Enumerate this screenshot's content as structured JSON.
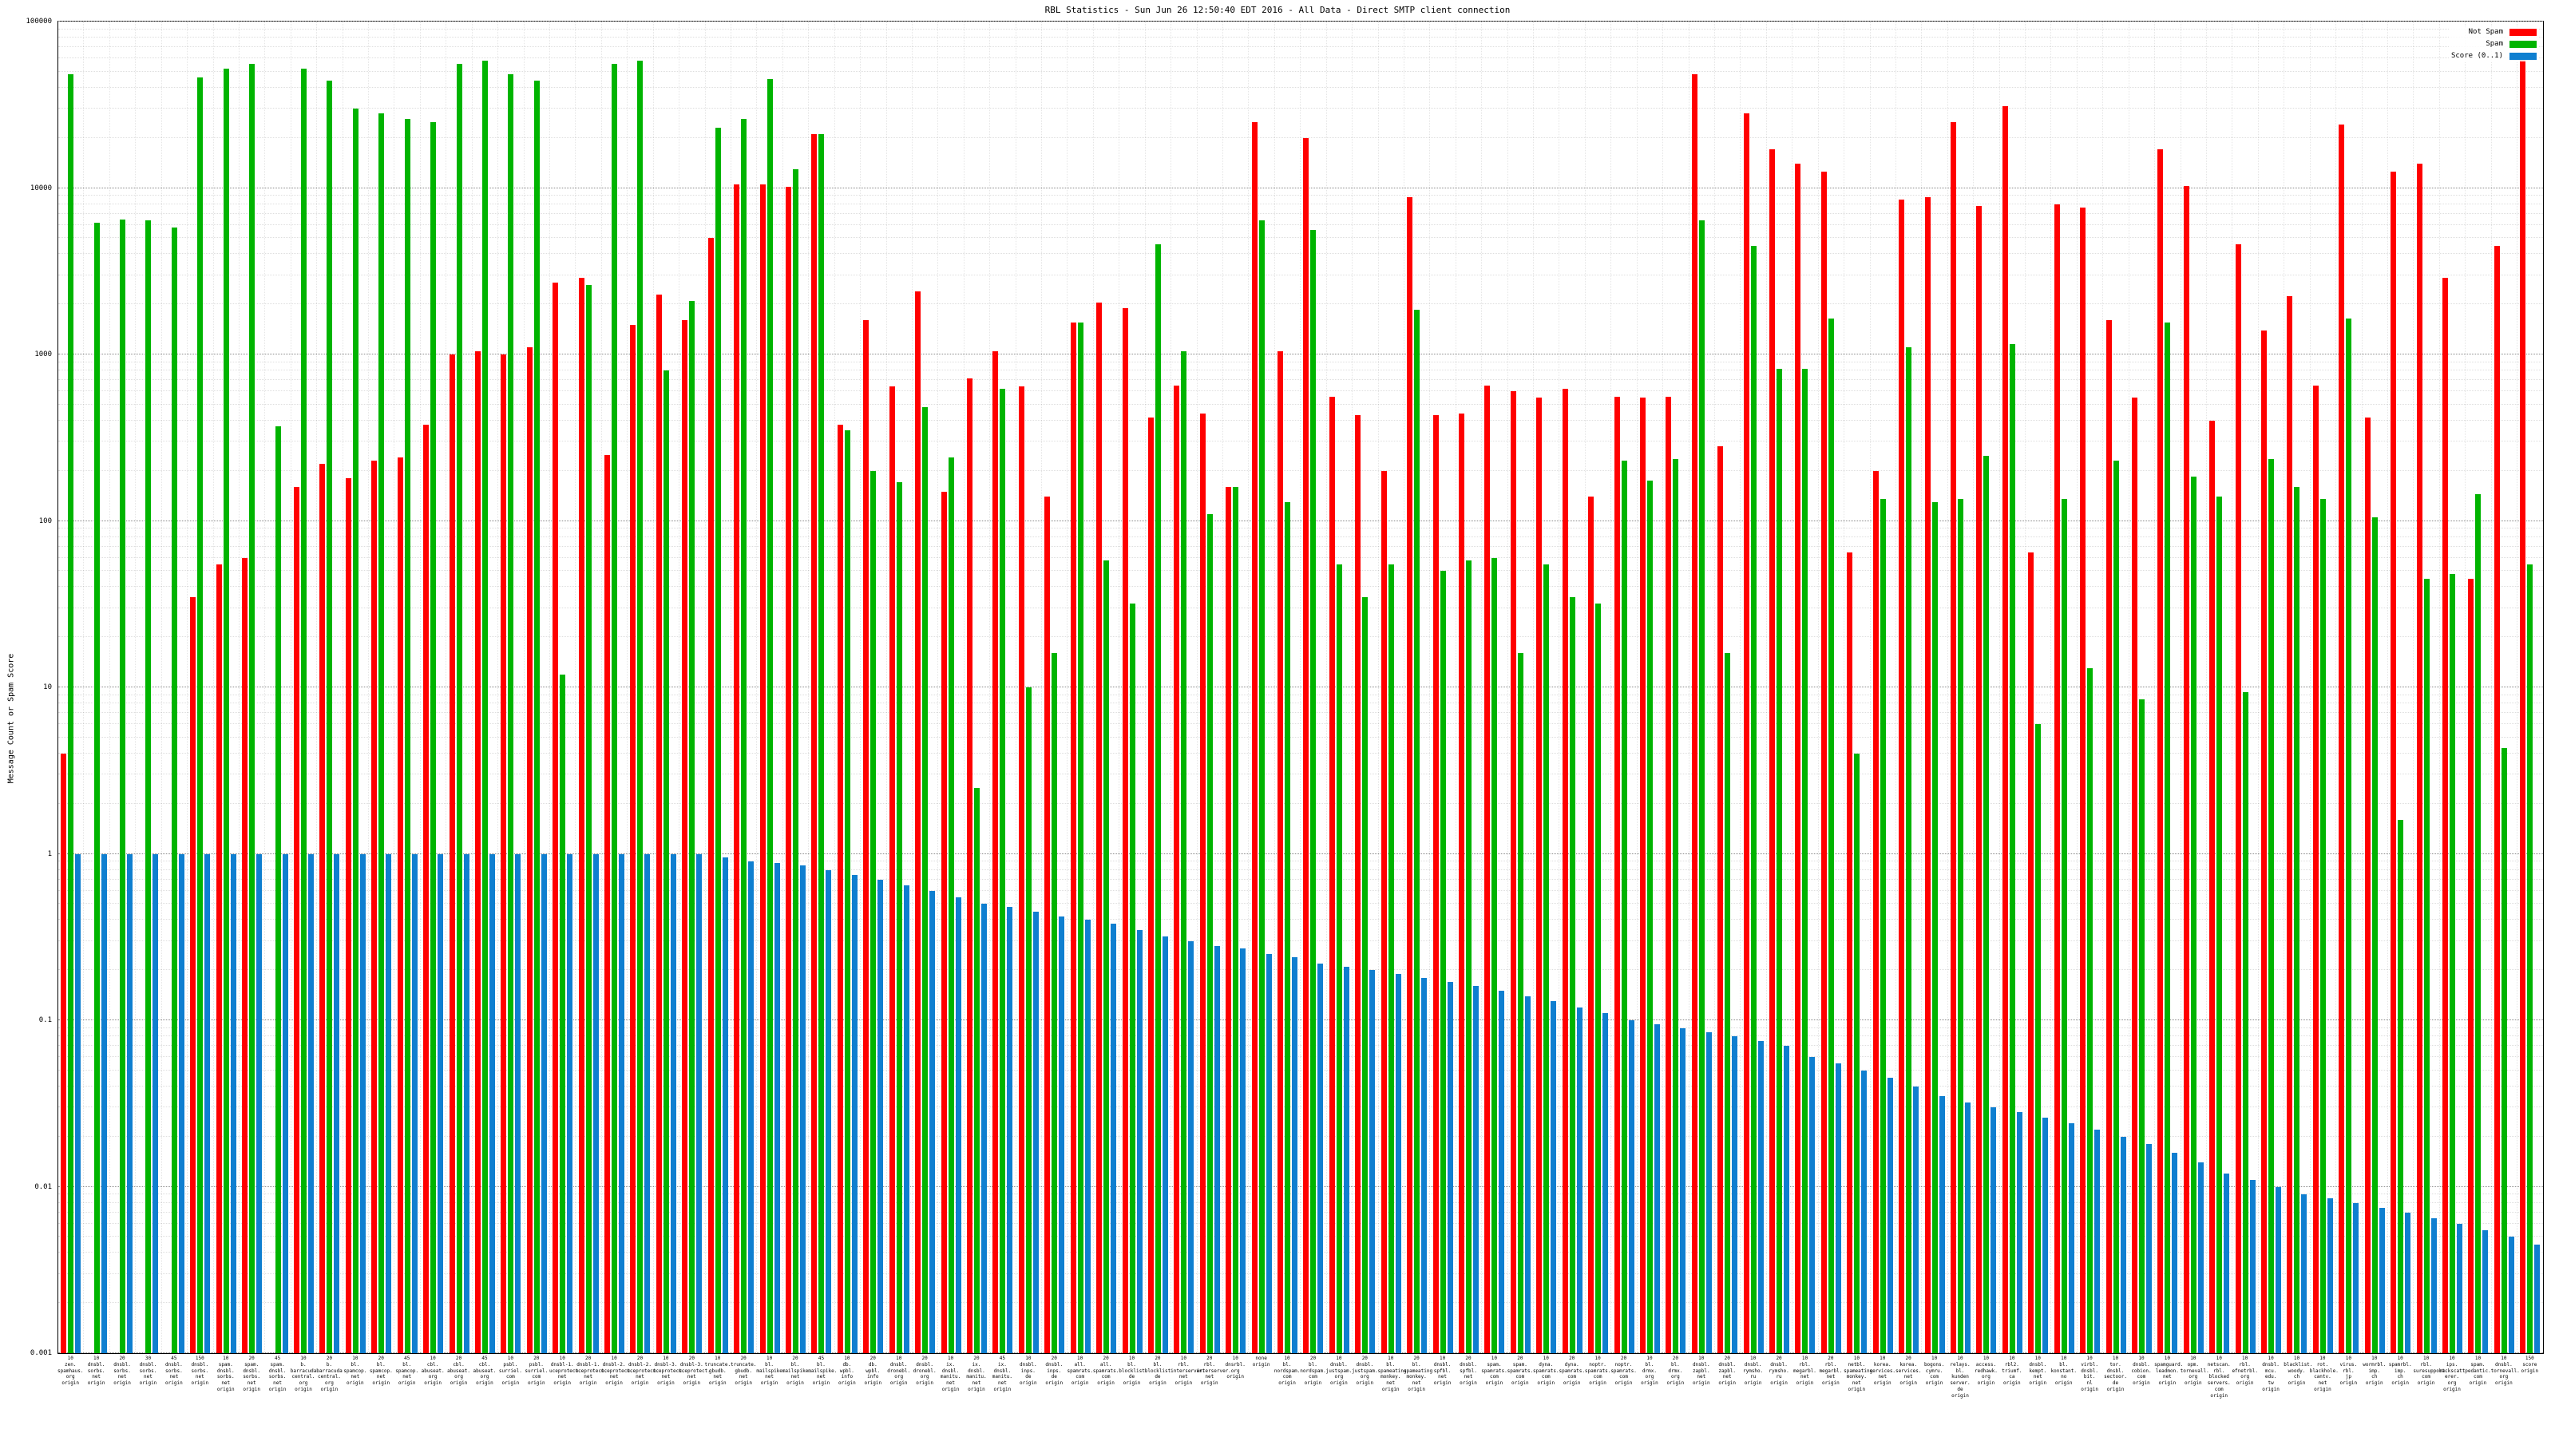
{
  "chart_data": {
    "type": "bar",
    "title": "RBL Statistics - Sun Jun 26 12:50:40 EDT 2016 - All Data - Direct SMTP client connection",
    "ylabel": "Message Count or Spam Score",
    "xlabel": "",
    "yscale": "log",
    "ylim": [
      0.001,
      100000
    ],
    "yticks": [
      "0.001",
      "0.01",
      "0.1",
      "1",
      "10",
      "100",
      "1000",
      "10000",
      "100000"
    ],
    "grid": true,
    "legend_position": "top-right",
    "categories": [
      "10\nzen.\nspamhaus.\norg\norigin",
      "10\ndnsbl.\nsorbs.\nnet\norigin",
      "20\ndnsbl.\nsorbs.\nnet\norigin",
      "30\ndnsbl.\nsorbs.\nnet\norigin",
      "45\ndnsbl.\nsorbs.\nnet\norigin",
      "150\ndnsbl.\nsorbs.\nnet\norigin",
      "10\nspam.\ndnsbl.\nsorbs.\nnet\norigin",
      "20\nspam.\ndnsbl.\nsorbs.\nnet\norigin",
      "45\nspam.\ndnsbl.\nsorbs.\nnet\norigin",
      "10\nb.\nbarracuda\ncentral.\norg\norigin",
      "20\nb.\nbarracuda\ncentral.\norg\norigin",
      "10\nbl.\nspamcop.\nnet\norigin",
      "20\nbl.\nspamcop.\nnet\norigin",
      "45\nbl.\nspamcop.\nnet\norigin",
      "10\ncbl.\nabuseat.\norg\norigin",
      "20\ncbl.\nabuseat.\norg\norigin",
      "45\ncbl.\nabuseat.\norg\norigin",
      "10\npsbl.\nsurriel.\ncom\norigin",
      "20\npsbl.\nsurriel.\ncom\norigin",
      "10\ndnsbl-1.\nuceprotect.\nnet\norigin",
      "20\ndnsbl-1.\nuceprotect.\nnet\norigin",
      "10\ndnsbl-2.\nuceprotect.\nnet\norigin",
      "20\ndnsbl-2.\nuceprotect.\nnet\norigin",
      "10\ndnsbl-3.\nuceprotect.\nnet\norigin",
      "20\ndnsbl-3.\nuceprotect.\nnet\norigin",
      "10\ntruncate.\ngbudb.\nnet\norigin",
      "20\ntruncate.\ngbudb.\nnet\norigin",
      "10\nbl.\nmailspike.\nnet\norigin",
      "20\nbl.\nmailspike.\nnet\norigin",
      "45\nbl.\nmailspike.\nnet\norigin",
      "10\ndb.\nwpbl.\ninfo\norigin",
      "20\ndb.\nwpbl.\ninfo\norigin",
      "10\ndnsbl.\ndronebl.\norg\norigin",
      "20\ndnsbl.\ndronebl.\norg\norigin",
      "10\nix.\ndnsbl.\nmanitu.\nnet\norigin",
      "20\nix.\ndnsbl.\nmanitu.\nnet\norigin",
      "45\nix.\ndnsbl.\nmanitu.\nnet\norigin",
      "10\ndnsbl.\ninps.\nde\norigin",
      "20\ndnsbl.\ninps.\nde\norigin",
      "10\nall.\nspamrats.\ncom\norigin",
      "20\nall.\nspamrats.\ncom\norigin",
      "10\nbl.\nblocklist.\nde\norigin",
      "20\nbl.\nblocklist.\nde\norigin",
      "10\nrbl.\ninterserver.\nnet\norigin",
      "20\nrbl.\ninterserver.\nnet\norigin",
      "10\ndnsrbl.\norg\norigin",
      "none\norigin",
      "10\nbl.\nnordspam.\ncom\norigin",
      "20\nbl.\nnordspam.\ncom\norigin",
      "10\ndnsbl.\njustspam.\norg\norigin",
      "20\ndnsbl.\njustspam.\norg\norigin",
      "10\nbl.\nspameating\nmonkey.\nnet\norigin",
      "20\nbl.\nspameating\nmonkey.\nnet\norigin",
      "10\ndnsbl.\nspfbl.\nnet\norigin",
      "20\ndnsbl.\nspfbl.\nnet\norigin",
      "10\nspam.\nspamrats.\ncom\norigin",
      "20\nspam.\nspamrats.\ncom\norigin",
      "10\ndyna.\nspamrats.\ncom\norigin",
      "20\ndyna.\nspamrats.\ncom\norigin",
      "10\nnoptr.\nspamrats.\ncom\norigin",
      "20\nnoptr.\nspamrats.\ncom\norigin",
      "10\nbl.\ndrmx.\norg\norigin",
      "20\nbl.\ndrmx.\norg\norigin",
      "10\ndnsbl.\nzapbl.\nnet\norigin",
      "20\ndnsbl.\nzapbl.\nnet\norigin",
      "10\ndnsbl.\nrymsho.\nru\norigin",
      "20\ndnsbl.\nrymsho.\nru\norigin",
      "10\nrbl.\nmegarbl.\nnet\norigin",
      "20\nrbl.\nmegarbl.\nnet\norigin",
      "10\nnetbl.\nspameating\nmonkey.\nnet\norigin",
      "10\nkorea.\nservices.\nnet\norigin",
      "20\nkorea.\nservices.\nnet\norigin",
      "10\nbogons.\ncymru.\ncom\norigin",
      "10\nrelays.\nbl.\nkunden\nserver.\nde\norigin",
      "10\naccess.\nredhawk.\norg\norigin",
      "10\nrbl2.\ntriumf.\nca\norigin",
      "10\ndnsbl.\nkempt.\nnet\norigin",
      "10\nbl.\nkonstant.\nno\norigin",
      "10\nvirbl.\ndnsbl.\nbit.\nnl\norigin",
      "10\ntor.\ndnsbl.\nsectoor.\nde\norigin",
      "10\ndnsbl.\ncobion.\ncom\norigin",
      "10\nspamguard.\nleadmon.\nnet\norigin",
      "10\nopm.\ntornevall.\norg\norigin",
      "10\nnetscan.\nrbl.\nblocked\nservers.\ncom\norigin",
      "10\nrbl.\nefnetrbl.\norg\norigin",
      "10\ndnsbl.\nmcu.\nedu.\ntw\norigin",
      "10\nblacklist.\nwoody.\nch\norigin",
      "10\nrot.\nblackhole.\ncantv.\nnet\norigin",
      "10\nvirus.\nrbl.\njp\norigin",
      "10\nwormrbl.\nimp.\nch\norigin",
      "10\nspamrbl.\nimp.\nch\norigin",
      "10\nrbl.\nsuresupport.\ncom\norigin",
      "10\nips.\nbackscatt\nerer.\norg\norigin",
      "10\nspam.\npedantic.\ncom\norigin",
      "10\ndnsbl.\ntornevall.\norg\norigin",
      "150\nscore\norigin"
    ],
    "series": [
      {
        "name": "Not Spam",
        "color": "#ff0000",
        "values": [
          4,
          null,
          null,
          null,
          null,
          35,
          55,
          60,
          null,
          160,
          220,
          180,
          230,
          240,
          380,
          1000,
          1050,
          1000,
          1100,
          2700,
          2900,
          250,
          1500,
          2300,
          1600,
          5000,
          10500,
          10500,
          10200,
          21000,
          380,
          1600,
          640,
          2400,
          150,
          720,
          1050,
          640,
          140,
          1550,
          2050,
          1900,
          420,
          650,
          440,
          160,
          25000,
          1050,
          20000,
          560,
          430,
          200,
          8800,
          430,
          440,
          650,
          600,
          550,
          620,
          140,
          560,
          550,
          560,
          48000,
          280,
          28000,
          17000,
          14000,
          12500,
          65,
          200,
          8500,
          8800,
          25000,
          7800,
          31000,
          65,
          8000,
          7600,
          1600,
          550,
          17000,
          10300,
          400,
          4600,
          1400,
          2250,
          650,
          24000,
          420,
          12500,
          14000,
          2900,
          45,
          4500,
          60000
        ]
      },
      {
        "name": "Spam",
        "color": "#00b400",
        "values": [
          48000,
          6200,
          6500,
          6400,
          5800,
          46000,
          52000,
          56000,
          370,
          52000,
          44000,
          30000,
          28000,
          26000,
          25000,
          56000,
          58000,
          48000,
          44000,
          12,
          2600,
          56000,
          58000,
          800,
          2100,
          23000,
          26000,
          45000,
          13000,
          21000,
          350,
          200,
          170,
          480,
          240,
          2.5,
          620,
          10,
          16,
          1550,
          58,
          32,
          4600,
          1050,
          110,
          160,
          6400,
          130,
          5600,
          55,
          35,
          55,
          1850,
          50,
          58,
          60,
          16,
          55,
          35,
          32,
          230,
          175,
          235,
          6400,
          16,
          4500,
          820,
          820,
          1650,
          4,
          135,
          1100,
          130,
          135,
          245,
          1150,
          6,
          135,
          13,
          230,
          8.5,
          1550,
          185,
          140,
          9.4,
          235,
          160,
          135,
          1650,
          105,
          1.6,
          45,
          48,
          145,
          4.3,
          55
        ]
      },
      {
        "name": "Score (0..1)",
        "color": "#0f7fd0",
        "values": [
          1,
          1,
          1,
          1,
          1,
          1,
          1,
          1,
          1,
          1,
          1,
          1,
          1,
          1,
          1,
          1,
          1,
          1,
          1,
          1,
          1,
          1,
          1,
          1,
          1,
          0.95,
          0.9,
          0.88,
          0.85,
          0.8,
          0.75,
          0.7,
          0.65,
          0.6,
          0.55,
          0.5,
          0.48,
          0.45,
          0.42,
          0.4,
          0.38,
          0.35,
          0.32,
          0.3,
          0.28,
          0.27,
          0.25,
          0.24,
          0.22,
          0.21,
          0.2,
          0.19,
          0.18,
          0.17,
          0.16,
          0.15,
          0.14,
          0.13,
          0.12,
          0.11,
          0.1,
          0.095,
          0.09,
          0.085,
          0.08,
          0.075,
          0.07,
          0.06,
          0.055,
          0.05,
          0.045,
          0.04,
          0.035,
          0.032,
          0.03,
          0.028,
          0.026,
          0.024,
          0.022,
          0.02,
          0.018,
          0.016,
          0.014,
          0.012,
          0.011,
          0.01,
          0.009,
          0.0085,
          0.008,
          0.0075,
          0.007,
          0.0065,
          0.006,
          0.0055,
          0.005,
          0.0045
        ]
      }
    ]
  }
}
